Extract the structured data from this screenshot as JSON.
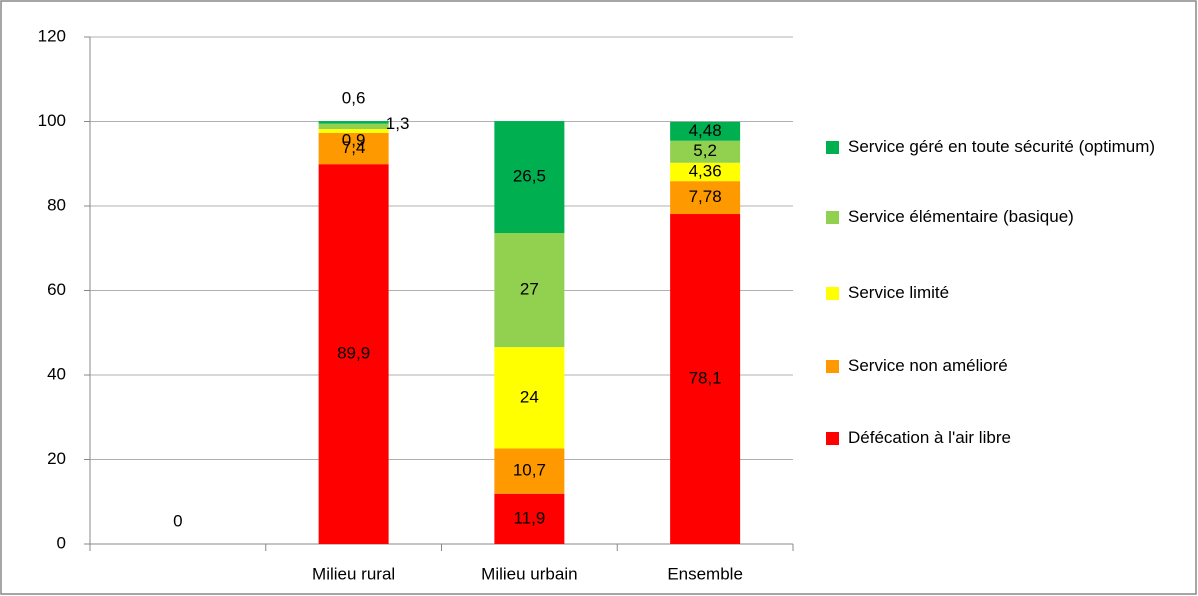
{
  "chart_data": {
    "type": "stacked_bar",
    "categories": [
      null,
      "Milieu rural",
      "Milieu urbain",
      "Ensemble"
    ],
    "series": [
      {
        "name": "Défécation à l'air libre",
        "color": "#ff0000",
        "values": [
          0,
          89.9,
          11.9,
          78.1
        ],
        "value_labels": [
          "0",
          "89,9",
          "11,9",
          "78,1"
        ]
      },
      {
        "name": "Service non amélioré",
        "color": "#ff9900",
        "values": [
          null,
          7.4,
          10.7,
          7.78
        ],
        "value_labels": [
          null,
          "7,4",
          "10,7",
          "7,78"
        ]
      },
      {
        "name": "Service limité",
        "color": "#ffff00",
        "values": [
          null,
          0.9,
          24,
          4.36
        ],
        "value_labels": [
          null,
          "0,9",
          "24",
          "4,36"
        ]
      },
      {
        "name": "Service élémentaire (basique)",
        "color": "#92d050",
        "values": [
          null,
          1.3,
          27,
          5.2
        ],
        "value_labels": [
          null,
          "1,3",
          "27",
          "5,2"
        ]
      },
      {
        "name": "Service géré en toute sécurité (optimum)",
        "color": "#00b050",
        "values": [
          null,
          0.6,
          26.5,
          4.48
        ],
        "value_labels": [
          null,
          "0,6",
          "26,5",
          "4,48"
        ]
      }
    ],
    "ylim": [
      0,
      120
    ],
    "yticks": [
      0,
      20,
      40,
      60,
      80,
      100,
      120
    ],
    "grid": true,
    "legend": "right"
  }
}
